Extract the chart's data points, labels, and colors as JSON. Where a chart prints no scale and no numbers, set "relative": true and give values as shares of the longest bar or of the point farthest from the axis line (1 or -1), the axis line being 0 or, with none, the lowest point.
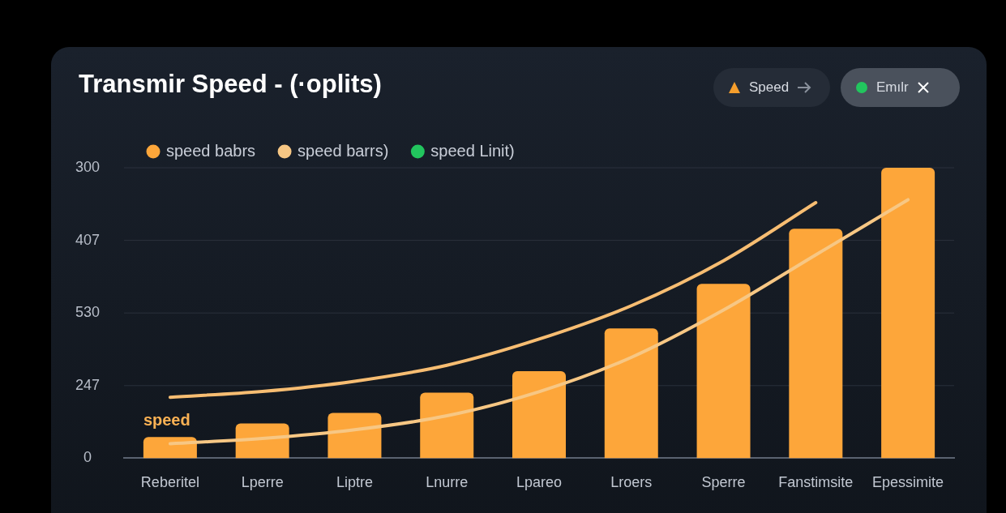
{
  "chart_data": {
    "type": "bar",
    "title": "Transmir Speed - (·oplits)",
    "categories": [
      "Reberitel",
      "Lperre",
      "Liptre",
      "Lnurre",
      "Lpareo",
      "Lroers",
      "Sperre",
      "Fanstimsite",
      "Epessimite"
    ],
    "series": [
      {
        "name": "speed babrs",
        "color": "#fda63a",
        "values": [
          0.073,
          0.12,
          0.156,
          0.226,
          0.3,
          0.447,
          0.6,
          0.79,
          1
        ]
      },
      {
        "name": "speed barrs)",
        "type": "line",
        "color": "#f7c784",
        "values": [
          0.05,
          0.068,
          0.098,
          0.146,
          0.229,
          0.347,
          0.51,
          0.7,
          0.89
        ]
      },
      {
        "type": "line",
        "color": "#f7bd72",
        "values": [
          0.21,
          0.23,
          0.265,
          0.32,
          0.41,
          0.525,
          0.68,
          0.88,
          null
        ]
      },
      {
        "name": "speed Linit)",
        "type": "line",
        "color": "#22c55e",
        "values": [
          null,
          null,
          null,
          null,
          null,
          null,
          null,
          null,
          null
        ]
      }
    ],
    "relative": true,
    "grid": "y",
    "legend": "top",
    "annotations": [
      "Speed",
      "Emılr",
      "speed",
      "0",
      "247",
      "530",
      "407",
      "300"
    ]
  }
}
